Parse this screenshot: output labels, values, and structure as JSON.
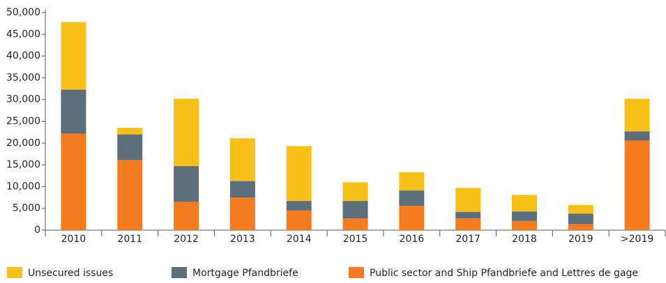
{
  "chart_data": {
    "type": "stacked_bar",
    "categories": [
      "2010",
      "2011",
      "2012",
      "2013",
      "2014",
      "2015",
      "2016",
      "2017",
      "2018",
      "2019",
      ">2019"
    ],
    "series": [
      {
        "name": "Public sector and Ship Pfandbriefe and Lettres de gage",
        "color": "#f47b20",
        "values": [
          22200,
          16100,
          6500,
          7500,
          4500,
          2700,
          5600,
          2700,
          2100,
          1400,
          20600
        ]
      },
      {
        "name": "Mortgage Pfandbriefe",
        "color": "#5c6f7b",
        "values": [
          10100,
          5900,
          8200,
          3800,
          2200,
          4000,
          3500,
          1500,
          2200,
          2400,
          2100
        ]
      },
      {
        "name": "Unsecured issues",
        "color": "#fbbf1a",
        "values": [
          15500,
          1500,
          15500,
          9800,
          12600,
          4300,
          4200,
          5500,
          3800,
          2000,
          7500
        ]
      }
    ],
    "ylim": [
      0,
      50000
    ],
    "yticks": [
      0,
      {
        "value": 5000,
        "label": "5,000"
      },
      {
        "value": 10000,
        "label": "10,000"
      },
      {
        "value": 15000,
        "label": "15,000"
      },
      {
        "value": 20000,
        "label": "20,000"
      },
      {
        "value": 25000,
        "label": "25,000"
      },
      {
        "value": 30000,
        "label": "30,000"
      },
      {
        "value": 35000,
        "label": "35,000"
      },
      {
        "value": 40000,
        "label": "40,000"
      },
      {
        "value": 45000,
        "label": "45,000"
      },
      {
        "value": 50000,
        "label": "50,000"
      }
    ],
    "grid": false
  }
}
